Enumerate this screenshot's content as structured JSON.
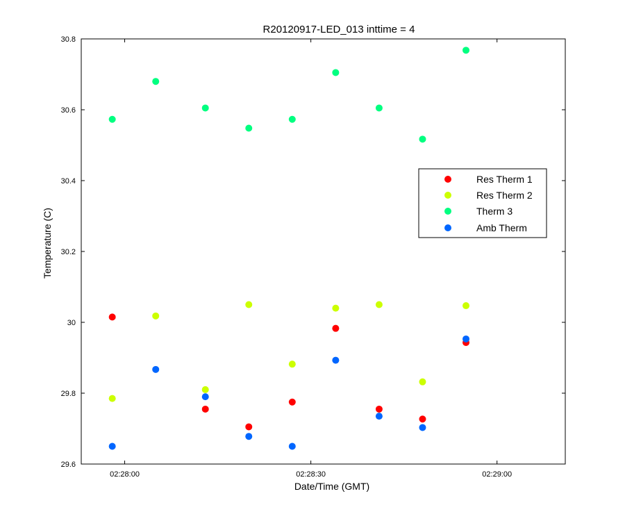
{
  "chart_data": {
    "type": "scatter",
    "title": "R20120917-LED_013 inttime = 4",
    "xlabel": "Date/Time (GMT)",
    "ylabel": "Temperature (C)",
    "xlim": [
      "02:27:53",
      "02:29:11"
    ],
    "ylim": [
      29.6,
      30.8
    ],
    "x_ticks": [
      "02:28:00",
      "02:28:30",
      "02:29:00"
    ],
    "y_ticks": [
      "29.6",
      "29.8",
      "30",
      "30.2",
      "30.4",
      "30.6",
      "30.8"
    ],
    "grid": false,
    "legend_position": "right",
    "x": [
      "02:27:58",
      "02:28:05",
      "02:28:13",
      "02:28:20",
      "02:28:27",
      "02:28:34",
      "02:28:41",
      "02:28:48",
      "02:28:55"
    ],
    "series": [
      {
        "name": "Res Therm 1",
        "color": "#ff0000",
        "values": [
          30.015,
          null,
          29.755,
          29.705,
          29.775,
          29.983,
          29.755,
          29.727,
          29.943
        ]
      },
      {
        "name": "Res Therm 2",
        "color": "#ccff00",
        "values": [
          29.785,
          30.018,
          29.81,
          30.05,
          29.882,
          30.04,
          30.05,
          29.832,
          30.047
        ]
      },
      {
        "name": "Therm 3",
        "color": "#00ff80",
        "values": [
          30.573,
          30.68,
          30.605,
          30.548,
          30.573,
          30.705,
          30.605,
          30.517,
          30.768
        ]
      },
      {
        "name": "Amb Therm",
        "color": "#0066ff",
        "values": [
          29.65,
          29.867,
          29.79,
          29.678,
          29.65,
          29.893,
          29.735,
          29.703,
          29.953
        ]
      }
    ]
  }
}
